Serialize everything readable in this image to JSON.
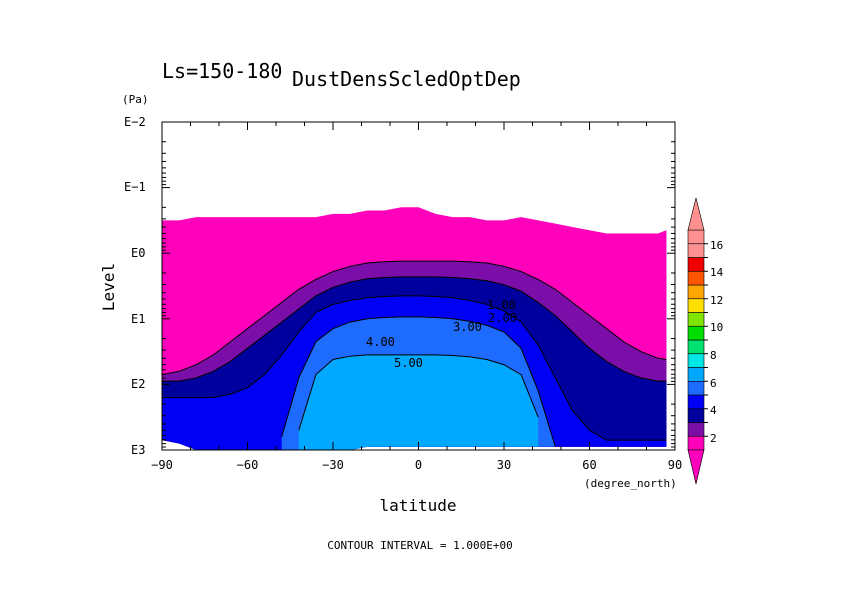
{
  "chart_data": {
    "type": "contour",
    "title": "DustDensScledOptDep",
    "subtitle": "Ls=150-180",
    "xlabel": "latitude",
    "x_unit": "(degree_north)",
    "ylabel": "Level",
    "y_unit": "(Pa)",
    "footer": "CONTOUR INTERVAL = 1.000E+00",
    "xlim": [
      -90,
      90
    ],
    "x_ticks": [
      -90,
      -60,
      -30,
      0,
      30,
      60,
      90
    ],
    "x_tick_labels": [
      "−90",
      "−60",
      "−30",
      "0",
      "30",
      "60",
      "90"
    ],
    "y_scale": "log",
    "y_direction": "reversed",
    "ylim_pa": [
      0.01,
      1000
    ],
    "y_ticks": [
      "E−2",
      "E−1",
      "E0",
      "E1",
      "E2",
      "E3"
    ],
    "contour_labels": [
      "1.00",
      "2.00",
      "3.00",
      "4.00",
      "5.00"
    ],
    "colorbar": {
      "tick_labels": [
        "2",
        "4",
        "6",
        "8",
        "10",
        "12",
        "14",
        "16"
      ],
      "colors": [
        "#FF00BB",
        "#7B0EA8",
        "#00009E",
        "#0000F5",
        "#1E6BFF",
        "#00A8FF",
        "#00E5E5",
        "#00E070",
        "#00DD00",
        "#7EE400",
        "#FFE000",
        "#FFA600",
        "#FF5500",
        "#EE0000",
        "#FF9090",
        "#FF9090"
      ],
      "extend": "both"
    },
    "fields": {
      "lat": [
        -90,
        -84,
        -78,
        -72,
        -66,
        -60,
        -54,
        -48,
        -42,
        -36,
        -30,
        -24,
        -18,
        -12,
        -6,
        0,
        6,
        12,
        18,
        24,
        30,
        36,
        42,
        48,
        54,
        60,
        66,
        72,
        78,
        84,
        87
      ],
      "level_top_exp": [
        -0.5,
        -0.5,
        -0.55,
        -0.55,
        -0.55,
        -0.55,
        -0.55,
        -0.55,
        -0.55,
        -0.55,
        -0.6,
        -0.6,
        -0.65,
        -0.65,
        -0.7,
        -0.7,
        -0.6,
        -0.55,
        -0.55,
        -0.5,
        -0.5,
        -0.55,
        -0.5,
        -0.45,
        -0.4,
        -0.35,
        -0.3,
        -0.3,
        -0.3,
        -0.3,
        -0.35
      ],
      "level_bottom_exp": [
        2.85,
        2.9,
        3.0,
        3.0,
        3.05,
        3.1,
        3.2,
        3.25,
        3.3,
        3.3,
        3.05,
        3.0,
        2.95,
        2.95,
        2.95,
        2.95,
        2.95,
        2.95,
        2.95,
        2.95,
        2.95,
        2.95,
        2.95,
        2.95,
        2.95,
        2.95,
        2.95,
        2.95,
        2.95,
        2.95,
        2.95
      ],
      "c1_exp": [
        1.85,
        1.8,
        1.7,
        1.55,
        1.35,
        1.15,
        0.95,
        0.75,
        0.55,
        0.4,
        0.28,
        0.2,
        0.15,
        0.13,
        0.12,
        0.12,
        0.12,
        0.12,
        0.13,
        0.15,
        0.2,
        0.28,
        0.4,
        0.55,
        0.75,
        0.95,
        1.15,
        1.35,
        1.5,
        1.6,
        1.62
      ],
      "c2_exp": [
        1.95,
        1.95,
        1.9,
        1.8,
        1.65,
        1.45,
        1.25,
        1.05,
        0.85,
        0.65,
        0.52,
        0.44,
        0.39,
        0.37,
        0.36,
        0.36,
        0.36,
        0.37,
        0.39,
        0.42,
        0.48,
        0.58,
        0.75,
        0.95,
        1.2,
        1.45,
        1.65,
        1.8,
        1.9,
        1.95,
        1.95
      ],
      "c3_exp": [
        2.2,
        2.2,
        2.2,
        2.2,
        2.15,
        2.05,
        1.85,
        1.55,
        1.2,
        0.9,
        0.78,
        0.72,
        0.68,
        0.66,
        0.65,
        0.65,
        0.66,
        0.68,
        0.72,
        0.78,
        0.88,
        1.05,
        1.4,
        1.9,
        2.4,
        2.7,
        2.85,
        2.85,
        2.85,
        2.85,
        2.85
      ],
      "c4_exp": [
        null,
        null,
        null,
        null,
        null,
        null,
        null,
        2.8,
        1.9,
        1.35,
        1.15,
        1.05,
        1.0,
        0.98,
        0.97,
        0.97,
        0.98,
        1.0,
        1.04,
        1.1,
        1.2,
        1.45,
        2.1,
        2.95,
        null,
        null,
        null,
        null,
        null,
        null,
        null
      ],
      "c5_exp": [
        null,
        null,
        null,
        null,
        null,
        null,
        null,
        null,
        2.7,
        1.85,
        1.62,
        1.57,
        1.55,
        1.55,
        1.55,
        1.55,
        1.55,
        1.56,
        1.58,
        1.62,
        1.7,
        1.85,
        2.5,
        null,
        null,
        null,
        null,
        null,
        null,
        null,
        null
      ]
    }
  }
}
